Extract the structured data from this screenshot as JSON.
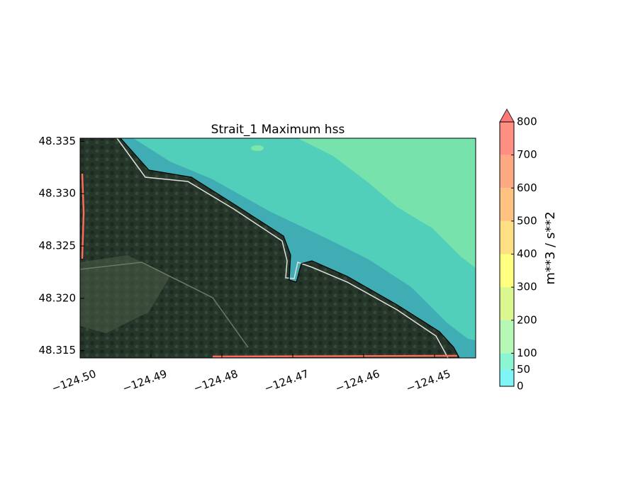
{
  "chart_data": {
    "type": "contour_map",
    "title": "Strait_1 Maximum hss",
    "xlim": [
      -124.5,
      -124.4442
    ],
    "ylim": [
      48.3143,
      48.3353
    ],
    "xticks": [
      {
        "value": -124.5,
        "label": "−124.50"
      },
      {
        "value": -124.49,
        "label": "−124.49"
      },
      {
        "value": -124.48,
        "label": "−124.48"
      },
      {
        "value": -124.47,
        "label": "−124.47"
      },
      {
        "value": -124.46,
        "label": "−124.46"
      },
      {
        "value": -124.45,
        "label": "−124.45"
      }
    ],
    "yticks": [
      {
        "value": 48.315,
        "label": "48.315"
      },
      {
        "value": 48.32,
        "label": "48.320"
      },
      {
        "value": 48.325,
        "label": "48.325"
      },
      {
        "value": 48.33,
        "label": "48.330"
      },
      {
        "value": 48.335,
        "label": "48.335"
      }
    ],
    "colorbar": {
      "label": "m**3 / s**2",
      "levels": [
        0,
        50,
        100,
        200,
        300,
        400,
        500,
        600,
        700,
        800
      ],
      "colors": [
        "#55f2f2",
        "#66f2c4",
        "#9ef59e",
        "#cdf56a",
        "#ffff55",
        "#ffd45a",
        "#ffae5a",
        "#ff8c5a",
        "#ff6a5a"
      ],
      "extend_color": "#ff6060"
    }
  }
}
